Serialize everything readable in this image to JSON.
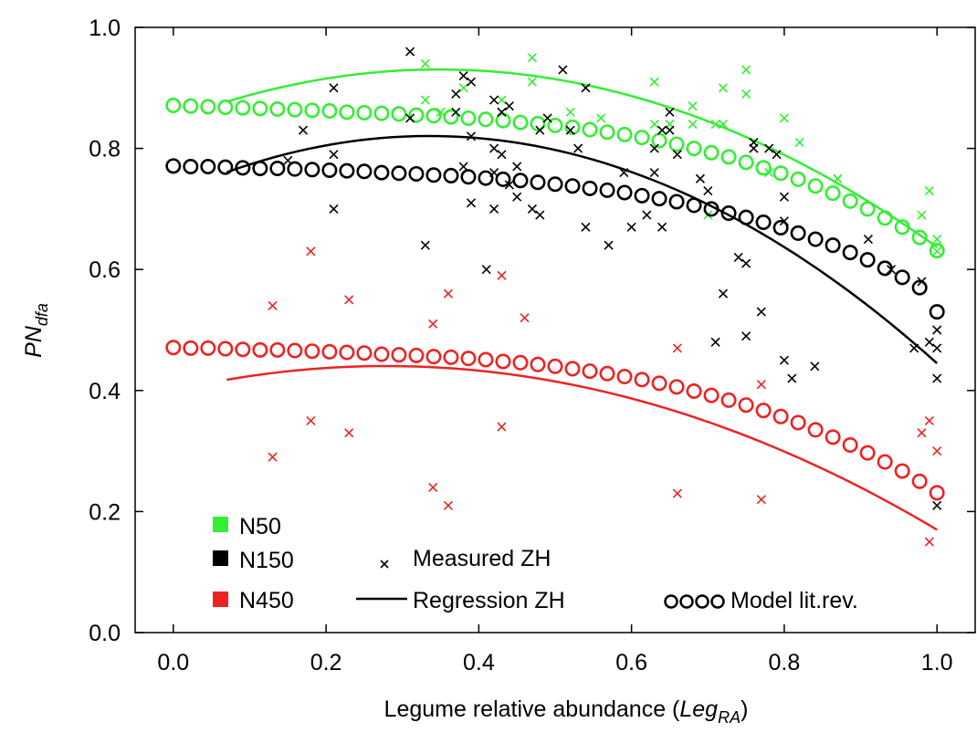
{
  "chart_data": {
    "type": "scatter",
    "xlabel": {
      "main": "Legume relative abundance (",
      "italic": "Leg",
      "sub": "RA",
      "close": ")"
    },
    "ylabel": {
      "italic": "PN",
      "sub": "dfa"
    },
    "xlim": [
      -0.05,
      1.05
    ],
    "ylim": [
      0.0,
      1.0
    ],
    "xticks": [
      "0.0",
      "0.2",
      "0.4",
      "0.6",
      "0.8",
      "1.0"
    ],
    "yticks": [
      "0.0",
      "0.2",
      "0.4",
      "0.6",
      "0.8",
      "1.0"
    ],
    "grid": false,
    "legend": {
      "colors": [
        {
          "name": "N50",
          "color": "#33ee33"
        },
        {
          "name": "N150",
          "color": "#000000"
        },
        {
          "name": "N450",
          "color": "#ee2222"
        }
      ],
      "markers": [
        {
          "label": "Measured ZH",
          "symbol": "x"
        },
        {
          "label": "Regression ZH",
          "symbol": "line"
        },
        {
          "label": "Model lit.rev.",
          "symbol": "oooo"
        }
      ]
    },
    "series": [
      {
        "name": "N50",
        "color": "#33ee33",
        "measured": [
          [
            0.33,
            0.94
          ],
          [
            0.33,
            0.88
          ],
          [
            0.35,
            0.86
          ],
          [
            0.38,
            0.9
          ],
          [
            0.43,
            0.88
          ],
          [
            0.47,
            0.95
          ],
          [
            0.47,
            0.91
          ],
          [
            0.52,
            0.86
          ],
          [
            0.56,
            0.85
          ],
          [
            0.63,
            0.91
          ],
          [
            0.63,
            0.84
          ],
          [
            0.65,
            0.84
          ],
          [
            0.68,
            0.87
          ],
          [
            0.68,
            0.84
          ],
          [
            0.71,
            0.84
          ],
          [
            0.72,
            0.9
          ],
          [
            0.72,
            0.84
          ],
          [
            0.75,
            0.93
          ],
          [
            0.75,
            0.89
          ],
          [
            0.78,
            0.76
          ],
          [
            0.8,
            0.85
          ],
          [
            0.82,
            0.81
          ],
          [
            0.98,
            0.69
          ],
          [
            0.99,
            0.73
          ],
          [
            1.0,
            0.65
          ],
          [
            1.0,
            0.63
          ],
          [
            0.7,
            0.69
          ],
          [
            0.87,
            0.75
          ]
        ],
        "regression": {
          "x0": 0.07,
          "x1": 1.0,
          "coef": [
            0.847,
            0.48,
            -0.69
          ]
        },
        "model": [
          0.871,
          0.87,
          0.869,
          0.868,
          0.867,
          0.866,
          0.865,
          0.864,
          0.863,
          0.862,
          0.86,
          0.859,
          0.858,
          0.857,
          0.855,
          0.854,
          0.852,
          0.85,
          0.848,
          0.846,
          0.843,
          0.841,
          0.838,
          0.835,
          0.831,
          0.827,
          0.823,
          0.818,
          0.813,
          0.807,
          0.8,
          0.793,
          0.786,
          0.777,
          0.768,
          0.759,
          0.749,
          0.738,
          0.726,
          0.713,
          0.7,
          0.685,
          0.67,
          0.653,
          0.631
        ]
      },
      {
        "name": "N150",
        "color": "#000000",
        "measured": [
          [
            0.21,
            0.9
          ],
          [
            0.21,
            0.79
          ],
          [
            0.21,
            0.7
          ],
          [
            0.31,
            0.96
          ],
          [
            0.31,
            0.85
          ],
          [
            0.33,
            0.64
          ],
          [
            0.37,
            0.89
          ],
          [
            0.37,
            0.86
          ],
          [
            0.38,
            0.92
          ],
          [
            0.38,
            0.77
          ],
          [
            0.39,
            0.91
          ],
          [
            0.39,
            0.82
          ],
          [
            0.39,
            0.71
          ],
          [
            0.41,
            0.6
          ],
          [
            0.42,
            0.88
          ],
          [
            0.42,
            0.8
          ],
          [
            0.42,
            0.76
          ],
          [
            0.42,
            0.7
          ],
          [
            0.43,
            0.86
          ],
          [
            0.43,
            0.79
          ],
          [
            0.44,
            0.87
          ],
          [
            0.44,
            0.74
          ],
          [
            0.45,
            0.77
          ],
          [
            0.45,
            0.72
          ],
          [
            0.47,
            0.7
          ],
          [
            0.48,
            0.83
          ],
          [
            0.48,
            0.69
          ],
          [
            0.49,
            0.85
          ],
          [
            0.51,
            0.93
          ],
          [
            0.52,
            0.83
          ],
          [
            0.53,
            0.8
          ],
          [
            0.54,
            0.9
          ],
          [
            0.54,
            0.67
          ],
          [
            0.57,
            0.64
          ],
          [
            0.59,
            0.76
          ],
          [
            0.6,
            0.67
          ],
          [
            0.62,
            0.69
          ],
          [
            0.63,
            0.8
          ],
          [
            0.63,
            0.76
          ],
          [
            0.64,
            0.83
          ],
          [
            0.64,
            0.67
          ],
          [
            0.65,
            0.86
          ],
          [
            0.65,
            0.83
          ],
          [
            0.66,
            0.79
          ],
          [
            0.69,
            0.75
          ],
          [
            0.7,
            0.73
          ],
          [
            0.71,
            0.48
          ],
          [
            0.72,
            0.56
          ],
          [
            0.74,
            0.62
          ],
          [
            0.75,
            0.61
          ],
          [
            0.75,
            0.49
          ],
          [
            0.76,
            0.81
          ],
          [
            0.76,
            0.8
          ],
          [
            0.77,
            0.53
          ],
          [
            0.78,
            0.8
          ],
          [
            0.79,
            0.79
          ],
          [
            0.8,
            0.72
          ],
          [
            0.8,
            0.68
          ],
          [
            0.8,
            0.45
          ],
          [
            0.81,
            0.42
          ],
          [
            0.84,
            0.44
          ],
          [
            0.91,
            0.65
          ],
          [
            0.94,
            0.6
          ],
          [
            0.98,
            0.58
          ],
          [
            0.99,
            0.48
          ],
          [
            1.0,
            0.5
          ],
          [
            1.0,
            0.47
          ],
          [
            1.0,
            0.42
          ],
          [
            1.0,
            0.21
          ],
          [
            0.97,
            0.47
          ],
          [
            0.15,
            0.78
          ],
          [
            0.17,
            0.83
          ]
        ],
        "regression": {
          "x0": 0.07,
          "x1": 1.0,
          "coef": [
            0.725,
            0.57,
            -0.85
          ]
        },
        "model": [
          0.771,
          0.77,
          0.77,
          0.769,
          0.768,
          0.767,
          0.767,
          0.766,
          0.765,
          0.764,
          0.763,
          0.762,
          0.76,
          0.759,
          0.758,
          0.756,
          0.755,
          0.753,
          0.751,
          0.749,
          0.747,
          0.744,
          0.741,
          0.738,
          0.734,
          0.731,
          0.727,
          0.722,
          0.717,
          0.712,
          0.706,
          0.7,
          0.693,
          0.686,
          0.678,
          0.669,
          0.66,
          0.65,
          0.64,
          0.628,
          0.616,
          0.602,
          0.587,
          0.57,
          0.53
        ]
      },
      {
        "name": "N450",
        "color": "#ee2222",
        "measured": [
          [
            0.13,
            0.54
          ],
          [
            0.13,
            0.29
          ],
          [
            0.18,
            0.63
          ],
          [
            0.18,
            0.35
          ],
          [
            0.23,
            0.55
          ],
          [
            0.23,
            0.33
          ],
          [
            0.34,
            0.51
          ],
          [
            0.34,
            0.24
          ],
          [
            0.36,
            0.56
          ],
          [
            0.36,
            0.21
          ],
          [
            0.43,
            0.59
          ],
          [
            0.43,
            0.34
          ],
          [
            0.46,
            0.52
          ],
          [
            0.66,
            0.47
          ],
          [
            0.66,
            0.23
          ],
          [
            0.77,
            0.41
          ],
          [
            0.77,
            0.22
          ],
          [
            0.98,
            0.33
          ],
          [
            0.99,
            0.35
          ],
          [
            1.0,
            0.3
          ],
          [
            0.99,
            0.15
          ]
        ],
        "regression": {
          "x0": 0.07,
          "x1": 1.0,
          "coef": [
            0.4,
            0.29,
            -0.52
          ]
        },
        "model": [
          0.471,
          0.47,
          0.47,
          0.469,
          0.468,
          0.467,
          0.467,
          0.466,
          0.465,
          0.464,
          0.463,
          0.462,
          0.46,
          0.459,
          0.458,
          0.456,
          0.455,
          0.453,
          0.451,
          0.448,
          0.446,
          0.443,
          0.44,
          0.436,
          0.432,
          0.428,
          0.423,
          0.418,
          0.412,
          0.406,
          0.399,
          0.392,
          0.384,
          0.376,
          0.367,
          0.357,
          0.347,
          0.335,
          0.323,
          0.31,
          0.297,
          0.282,
          0.267,
          0.25,
          0.231
        ]
      }
    ]
  }
}
